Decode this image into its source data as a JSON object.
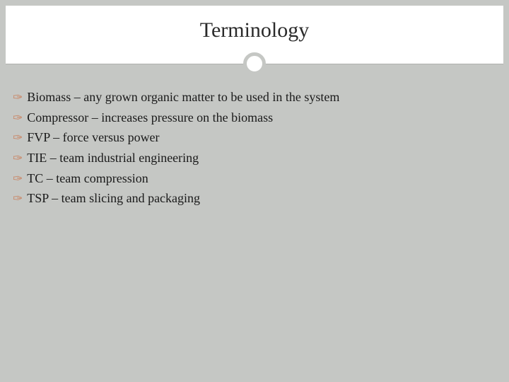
{
  "slide": {
    "title": "Terminology",
    "title_fontsize": 30,
    "title_color": "#2a2a2a",
    "background_color": "#c5c7c4",
    "header_background": "#ffffff",
    "divider_circle_border_color": "#c5c7c4",
    "divider_line_color": "#b0b0ae",
    "bullet_color": "#c98a6b",
    "body_fontsize": 18,
    "body_color": "#1a1a1a",
    "items": [
      {
        "text": "Biomass – any grown organic matter to be used in the system"
      },
      {
        "text": "Compressor – increases pressure on the biomass"
      },
      {
        "text": "FVP – force versus power"
      },
      {
        "text": "TIE – team industrial engineering"
      },
      {
        "text": "TC – team compression"
      },
      {
        "text": "TSP – team slicing and packaging"
      }
    ]
  }
}
